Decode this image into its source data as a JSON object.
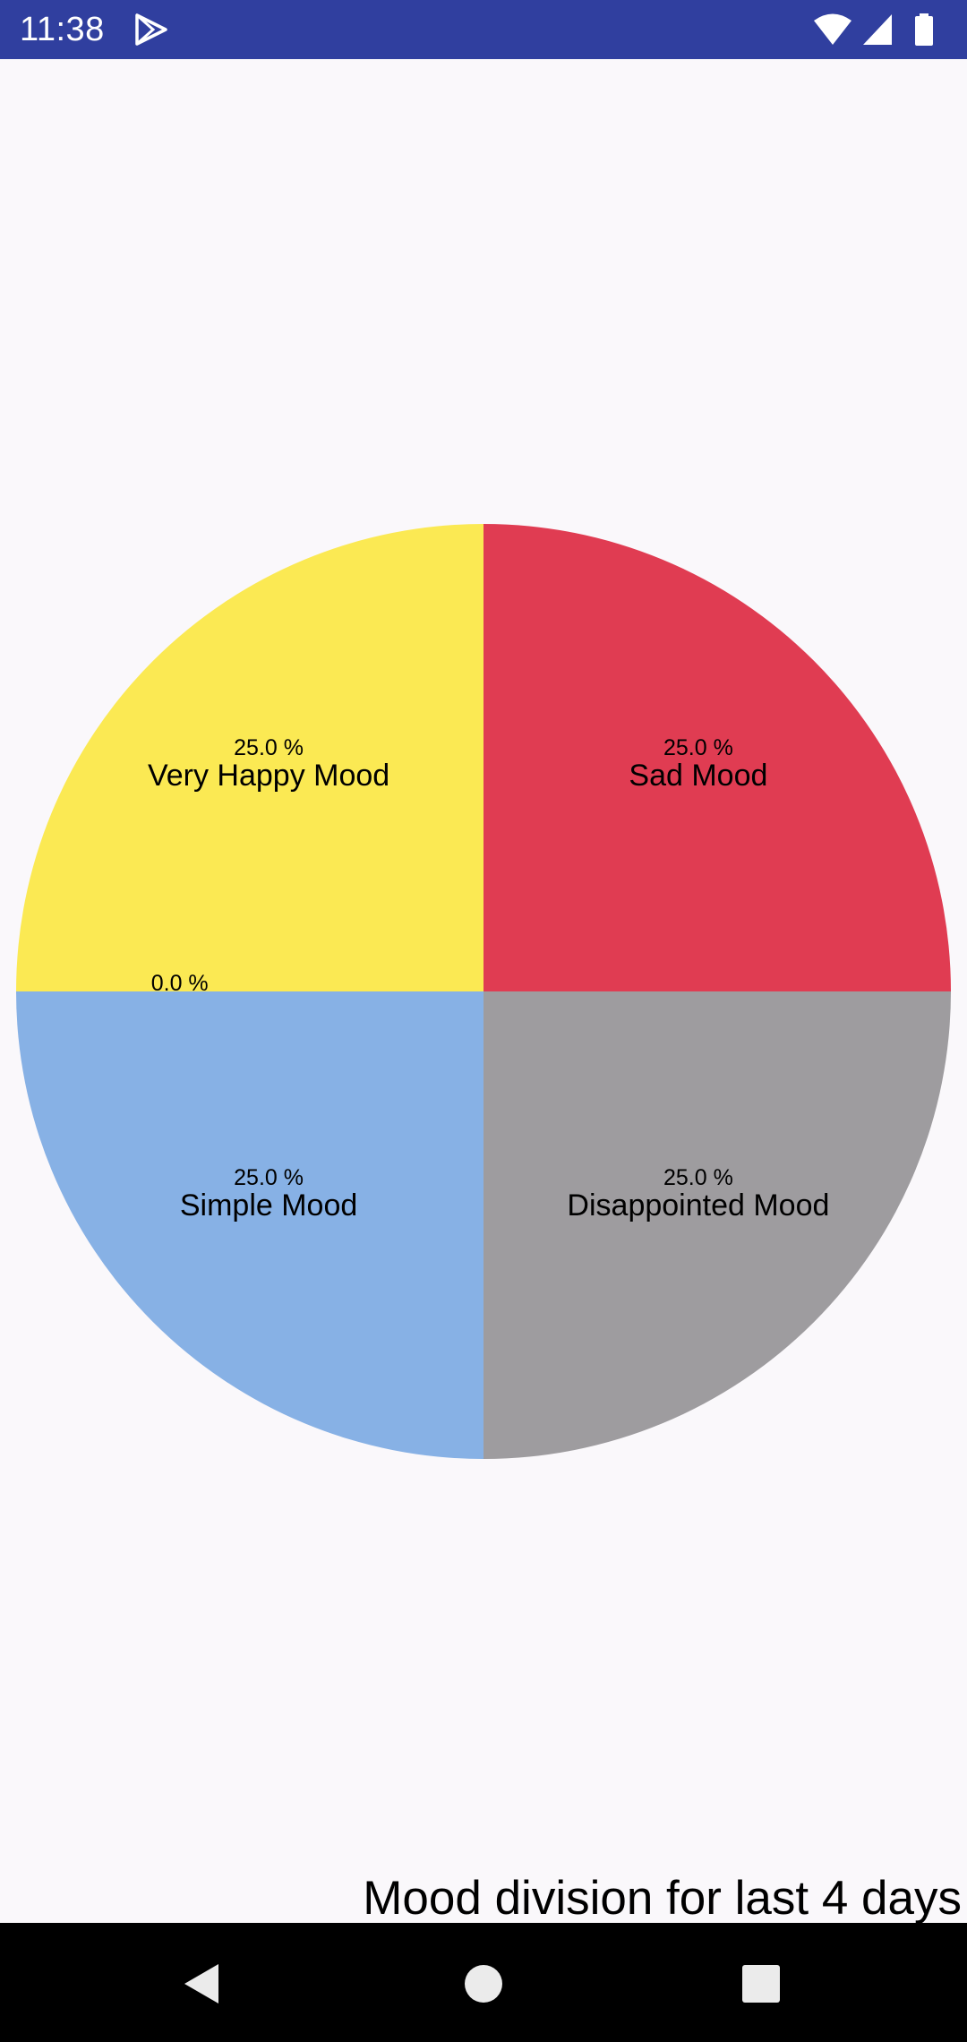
{
  "status_bar": {
    "time": "11:38",
    "left_icon": "play-store-icon",
    "right_icons": [
      "wifi-icon",
      "cell-signal-icon",
      "battery-icon"
    ],
    "background": "#303F9F"
  },
  "chart_data": {
    "type": "pie",
    "title": "",
    "description": "Mood division for last 4 days",
    "start_angle": "top, clockwise",
    "slices": [
      {
        "label": "Sad Mood",
        "value": 25.0,
        "value_text": "25.0 %",
        "color": "#E03C52"
      },
      {
        "label": "Disappointed Mood",
        "value": 25.0,
        "value_text": "25.0 %",
        "color": "#9E9C9F"
      },
      {
        "label": "Simple Mood",
        "value": 25.0,
        "value_text": "25.0 %",
        "color": "#87B1E5"
      },
      {
        "label": "",
        "value": 0.0,
        "value_text": "0.0 %",
        "color": "#FFFFFF"
      },
      {
        "label": "Very Happy Mood",
        "value": 25.0,
        "value_text": "25.0 %",
        "color": "#FBE953"
      }
    ],
    "legend": "none"
  },
  "nav_bar": {
    "back": "back-icon",
    "home": "home-icon",
    "recents": "recents-icon"
  }
}
